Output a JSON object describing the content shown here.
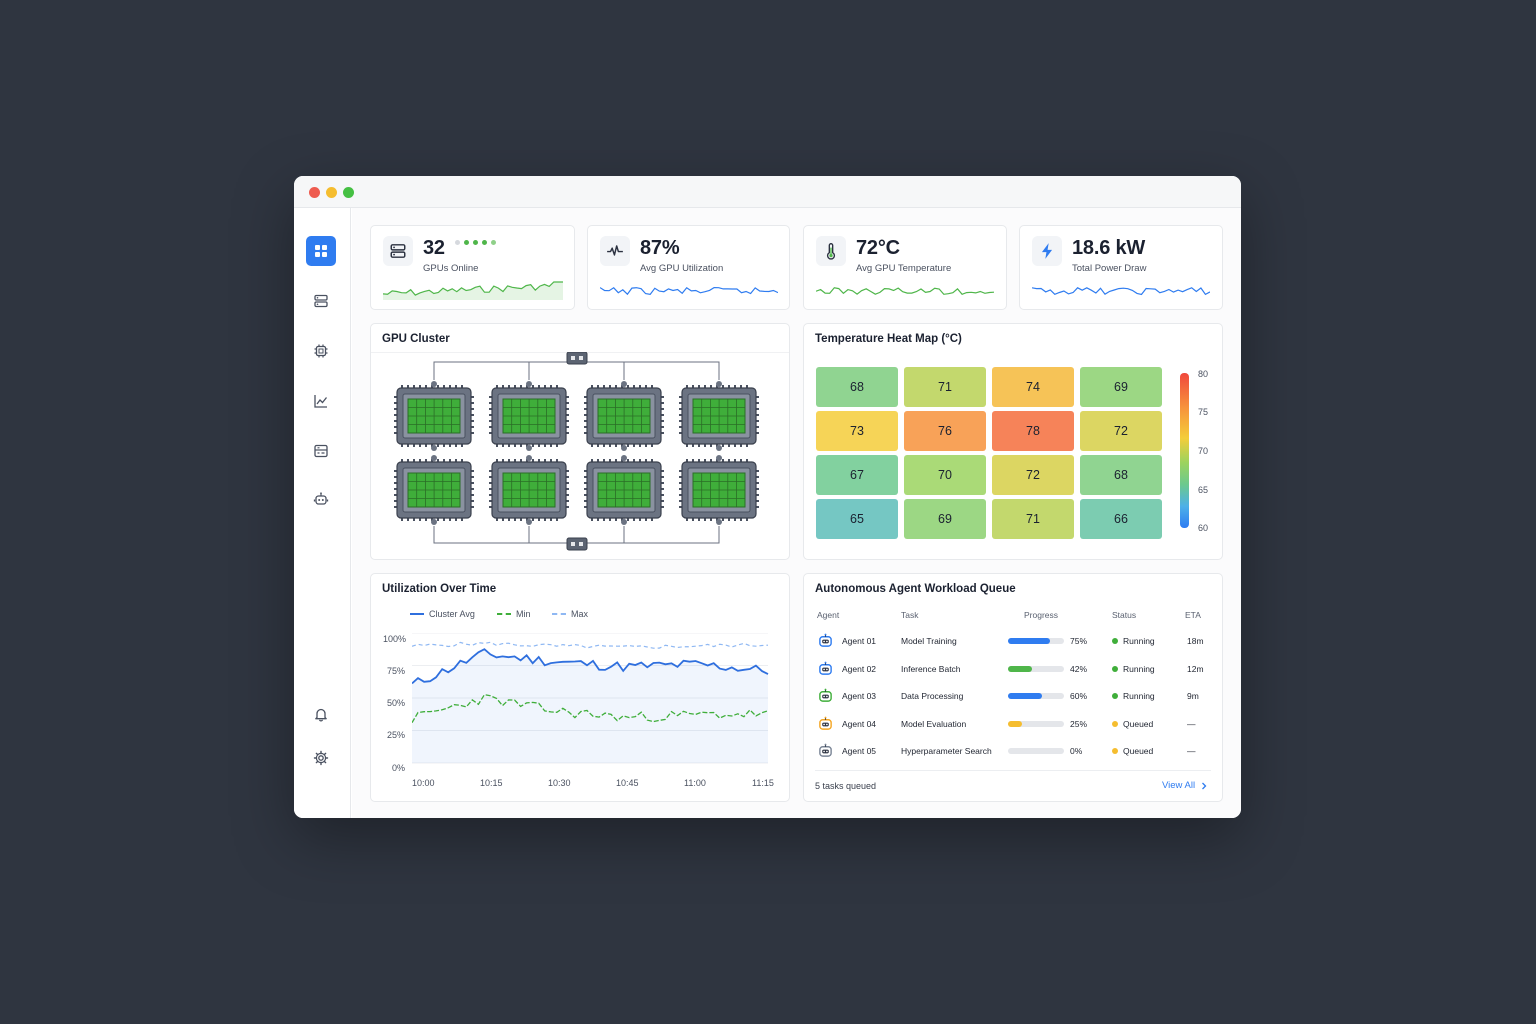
{
  "window": {
    "controls": [
      {
        "name": "close",
        "color": "#ee5b4f"
      },
      {
        "name": "minimize",
        "color": "#f5bd2f"
      },
      {
        "name": "maximize",
        "color": "#45c043"
      }
    ]
  },
  "sidebar": {
    "items": [
      {
        "icon": "grid-icon",
        "active": true
      },
      {
        "icon": "server-icon",
        "active": false
      },
      {
        "icon": "chip-icon",
        "active": false
      },
      {
        "icon": "chart-line-icon",
        "active": false
      },
      {
        "icon": "list-panel-icon",
        "active": false
      },
      {
        "icon": "robot-icon",
        "active": false
      }
    ],
    "bottom_items": [
      {
        "icon": "bell-icon"
      },
      {
        "icon": "gear-icon"
      }
    ]
  },
  "stats": [
    {
      "value": "32",
      "label": "GPUs Online",
      "icon": "server-icon",
      "status_dots": 5,
      "spark_color": "#4fb64a",
      "spark_fill": true
    },
    {
      "value": "87%",
      "label": "Avg GPU Utilization",
      "icon": "pulse-icon",
      "spark_color": "#2f7cf0",
      "spark_fill": false
    },
    {
      "value": "72°C",
      "label": "Avg GPU Temperature",
      "icon": "thermometer-icon",
      "spark_color": "#4fb64a",
      "spark_fill": false
    },
    {
      "value": "18.6 kW",
      "label": "Total Power Draw",
      "icon": "bolt-icon",
      "spark_color": "#2f7cf0",
      "spark_fill": false
    }
  ],
  "gpu_cluster": {
    "title": "GPU Cluster",
    "gpu_count": 8
  },
  "heatmap": {
    "title": "Temperature Heat Map (°C)",
    "rows": [
      [
        68,
        71,
        74,
        69
      ],
      [
        73,
        76,
        78,
        72
      ],
      [
        67,
        70,
        72,
        68
      ],
      [
        65,
        69,
        71,
        66
      ]
    ],
    "scale": [
      "80",
      "75",
      "70",
      "65",
      "60"
    ],
    "scale_range": [
      60,
      80
    ]
  },
  "utilization": {
    "title": "Utilization Over Time",
    "legend": [
      "Cluster Avg",
      "Min",
      "Max"
    ],
    "y_ticks": [
      "100%",
      "75%",
      "50%",
      "25%",
      "0%"
    ],
    "x_ticks": [
      "10:00",
      "10:15",
      "10:30",
      "10:45",
      "11:00",
      "11:15"
    ],
    "colors": {
      "avg": "#2f6fde",
      "min": "#3fae3a",
      "max": "#8fb8f3"
    }
  },
  "chart_data": {
    "type": "line",
    "title": "Utilization Over Time",
    "x": [
      "10:00",
      "10:15",
      "10:30",
      "10:45",
      "11:00",
      "11:15"
    ],
    "ylim": [
      0,
      100
    ],
    "series": [
      {
        "name": "Cluster Avg",
        "values": [
          60,
          84,
          78,
          74,
          76,
          71
        ]
      },
      {
        "name": "Min",
        "values": [
          34,
          50,
          40,
          35,
          37,
          38
        ]
      },
      {
        "name": "Max",
        "values": [
          90,
          92,
          90,
          89,
          90,
          91
        ]
      }
    ]
  },
  "queue": {
    "title": "Autonomous Agent Workload Queue",
    "headers": [
      "Agent",
      "Task",
      "Progress",
      "Status",
      "ETA"
    ],
    "rows": [
      {
        "agent": "Agent 01",
        "task": "Model Training",
        "progress": 75,
        "progress_label": "75%",
        "status": "Running",
        "eta": "18m",
        "bar_color": "#2f7cf0",
        "status_color": "#3fae3a",
        "avatar_color": "#2f7cf0"
      },
      {
        "agent": "Agent 02",
        "task": "Inference Batch",
        "progress": 42,
        "progress_label": "42%",
        "status": "Running",
        "eta": "12m",
        "bar_color": "#4fb64a",
        "status_color": "#3fae3a",
        "avatar_color": "#2f7cf0"
      },
      {
        "agent": "Agent 03",
        "task": "Data Processing",
        "progress": 60,
        "progress_label": "60%",
        "status": "Running",
        "eta": "9m",
        "bar_color": "#2f7cf0",
        "status_color": "#3fae3a",
        "avatar_color": "#3fae3a"
      },
      {
        "agent": "Agent 04",
        "task": "Model Evaluation",
        "progress": 25,
        "progress_label": "25%",
        "status": "Queued",
        "eta": "—",
        "bar_color": "#f5bd2f",
        "status_color": "#f5bd2f",
        "avatar_color": "#f5a623"
      },
      {
        "agent": "Agent 05",
        "task": "Hyperparameter Search",
        "progress": 0,
        "progress_label": "0%",
        "status": "Queued",
        "eta": "—",
        "bar_color": "#e4e6ea",
        "status_color": "#f5bd2f",
        "avatar_color": "#7a8596"
      }
    ],
    "footer_text": "5 tasks queued",
    "view_all_label": "View All"
  }
}
